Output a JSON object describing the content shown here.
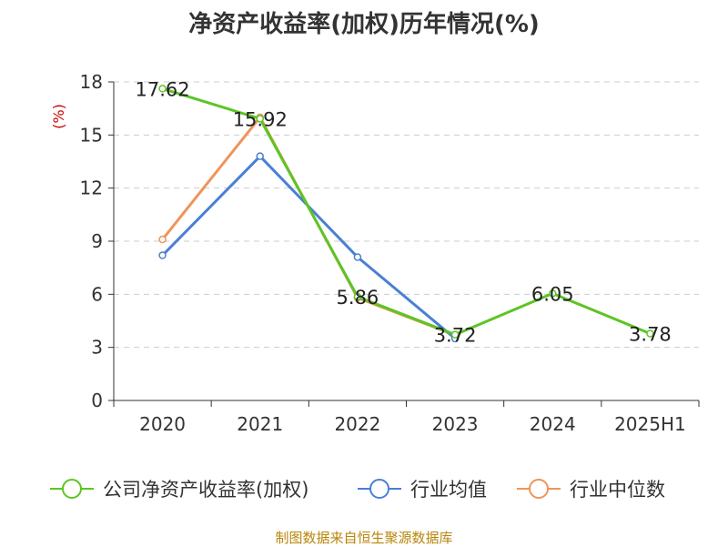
{
  "title": "净资产收益率(加权)历年情况(%)",
  "source": "制图数据来自恒生聚源数据库",
  "chart_data": {
    "type": "line",
    "title": "净资产收益率(加权)历年情况(%)",
    "ylabel": "(%)",
    "xlabel": "",
    "categories": [
      "2020",
      "2021",
      "2022",
      "2023",
      "2024",
      "2025H1"
    ],
    "ylim": [
      0,
      18
    ],
    "yticks": [
      0,
      3,
      6,
      9,
      12,
      15,
      18
    ],
    "grid": true,
    "legend_position": "bottom",
    "series": [
      {
        "name": "公司净资产收益率(加权)",
        "color": "#5cc524",
        "values": [
          17.62,
          15.92,
          5.86,
          3.72,
          6.05,
          3.78
        ],
        "labels": [
          "17.62",
          "15.92",
          "5.86",
          "3.72",
          "6.05",
          "3.78"
        ]
      },
      {
        "name": "行业均值",
        "color": "#4a7fd6",
        "values": [
          8.2,
          13.8,
          8.1,
          3.5,
          null,
          null
        ]
      },
      {
        "name": "行业中位数",
        "color": "#f0935a",
        "values": [
          9.1,
          16.0,
          5.8,
          3.7,
          null,
          null
        ]
      }
    ]
  }
}
